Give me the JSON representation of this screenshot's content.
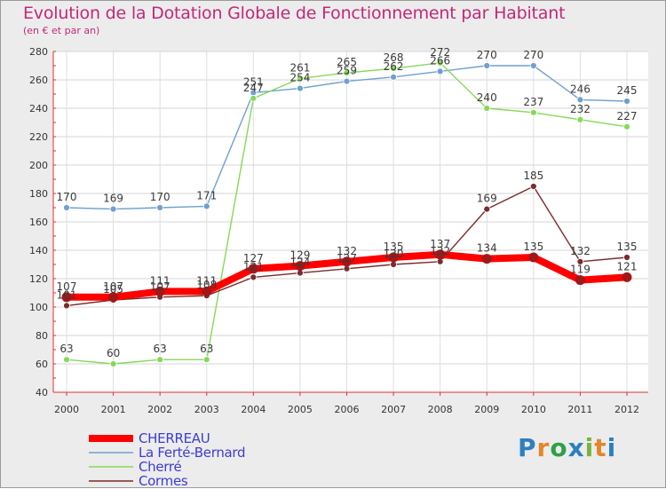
{
  "chart_data": {
    "type": "line",
    "title": "Evolution de la Dotation Globale de Fonctionnement par Habitant",
    "subtitle": "(en € et par an)",
    "xlabel": "",
    "ylabel": "",
    "ylim": [
      40,
      280
    ],
    "yticks": [
      40,
      60,
      80,
      100,
      120,
      140,
      160,
      180,
      200,
      220,
      240,
      260,
      280
    ],
    "categories": [
      "2000",
      "2001",
      "2002",
      "2003",
      "2004",
      "2005",
      "2006",
      "2007",
      "2008",
      "2009",
      "2010",
      "2011",
      "2012"
    ],
    "series": [
      {
        "name": "CHERREAU",
        "color": "#ff0000",
        "values": [
          107,
          107,
          111,
          111,
          127,
          129,
          132,
          135,
          137,
          134,
          135,
          119,
          121
        ]
      },
      {
        "name": "La Ferté-Bernard",
        "color": "#6fa0cf",
        "values": [
          170,
          169,
          170,
          171,
          251,
          254,
          259,
          262,
          266,
          270,
          270,
          246,
          245
        ]
      },
      {
        "name": "Cherré",
        "color": "#86d85a",
        "values": [
          63,
          60,
          63,
          63,
          247,
          261,
          265,
          268,
          272,
          240,
          237,
          232,
          227
        ]
      },
      {
        "name": "Cormes",
        "color": "#7a2a2a",
        "values": [
          101,
          105,
          107,
          108,
          121,
          124,
          127,
          130,
          132,
          169,
          185,
          132,
          135
        ]
      }
    ],
    "legend": "bottom-left"
  },
  "brand": {
    "text": "Proxiti"
  }
}
